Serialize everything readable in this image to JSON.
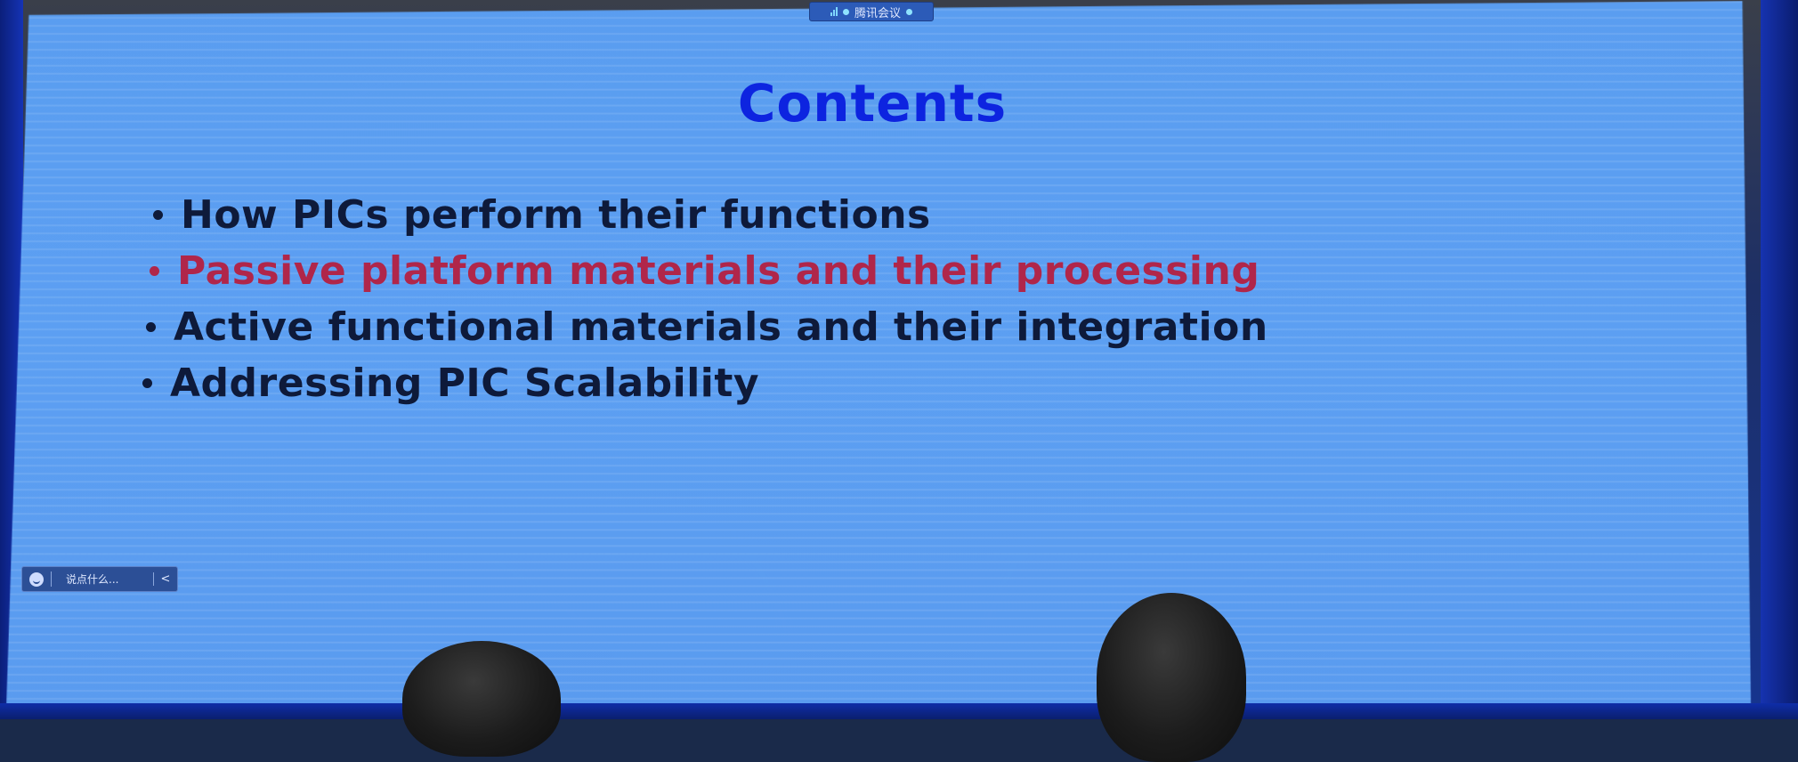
{
  "meeting_bar": {
    "label": "腾讯会议"
  },
  "slide": {
    "title": "Contents",
    "bullets": [
      {
        "text": "How PICs perform their functions",
        "highlighted": false
      },
      {
        "text": "Passive platform materials and their processing",
        "highlighted": true
      },
      {
        "text": "Active functional materials and their integration",
        "highlighted": false
      },
      {
        "text": "Addressing PIC Scalability",
        "highlighted": false
      }
    ],
    "colors": {
      "title": "#0d24e0",
      "bullet_text": "#0e1a3a",
      "highlight_text": "#b0264a",
      "background": "#5c9ff2"
    }
  },
  "chat_box": {
    "placeholder": "说点什么..."
  },
  "icons": {
    "signal": "signal-icon",
    "status": "dot-icon",
    "smile": "smile-icon",
    "collapse": "chevron-left-icon"
  }
}
